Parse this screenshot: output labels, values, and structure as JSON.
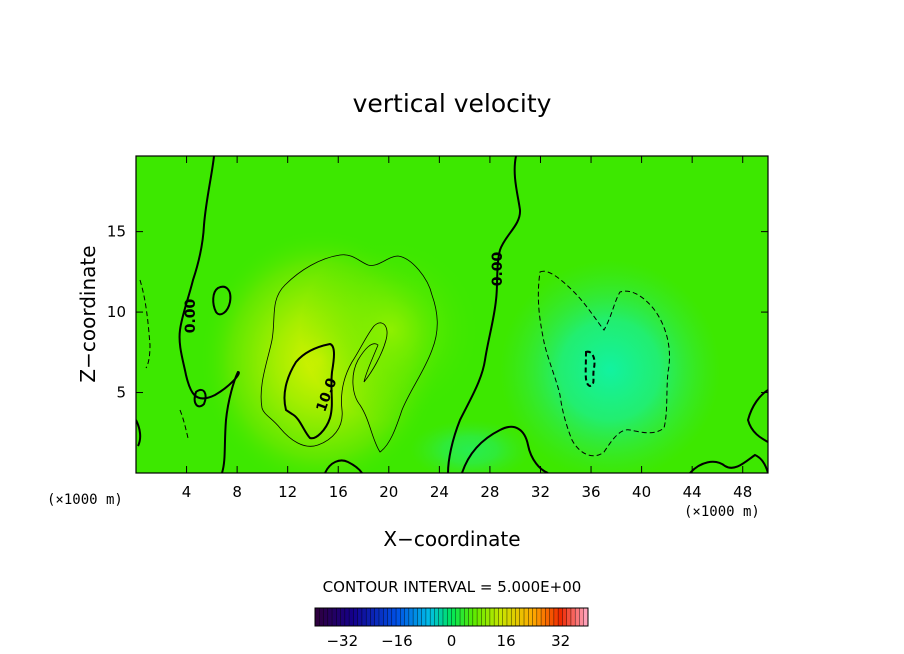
{
  "chart_data": {
    "type": "heatmap",
    "title": "vertical velocity",
    "xlabel": "X−coordinate",
    "ylabel": "Z−coordinate",
    "x_unit_left": "(×1000 m)",
    "x_unit_right": "(×1000 m)",
    "xlim": [
      0,
      50
    ],
    "ylim": [
      0,
      19.7
    ],
    "x_ticks": [
      "4",
      "8",
      "12",
      "16",
      "20",
      "24",
      "28",
      "32",
      "36",
      "40",
      "44",
      "48"
    ],
    "x_tick_values": [
      4,
      8,
      12,
      16,
      20,
      24,
      28,
      32,
      36,
      40,
      44,
      48
    ],
    "y_ticks": [
      "5",
      "10",
      "15"
    ],
    "y_tick_values": [
      5,
      10,
      15
    ],
    "contour_interval_text": "CONTOUR INTERVAL = 5.000E+00",
    "contour_labels": [
      {
        "text": "0.00",
        "x": 4.0,
        "z": 10.0
      },
      {
        "text": "0.00",
        "x": 28.5,
        "z": 13.2
      },
      {
        "text": "10.0",
        "x": 15.0,
        "z": 5.3
      }
    ],
    "colorbar": {
      "range": [
        -40,
        40
      ],
      "tick_labels": [
        "−32",
        "−16",
        "0",
        "16",
        "32"
      ],
      "tick_values": [
        -32,
        -16,
        0,
        16,
        32
      ]
    },
    "features": [
      {
        "kind": "updraft",
        "x": 15.0,
        "z": 6.0,
        "max_value": 12
      },
      {
        "kind": "downdraft",
        "x": 37.0,
        "z": 6.0,
        "min_value": -7
      }
    ]
  }
}
